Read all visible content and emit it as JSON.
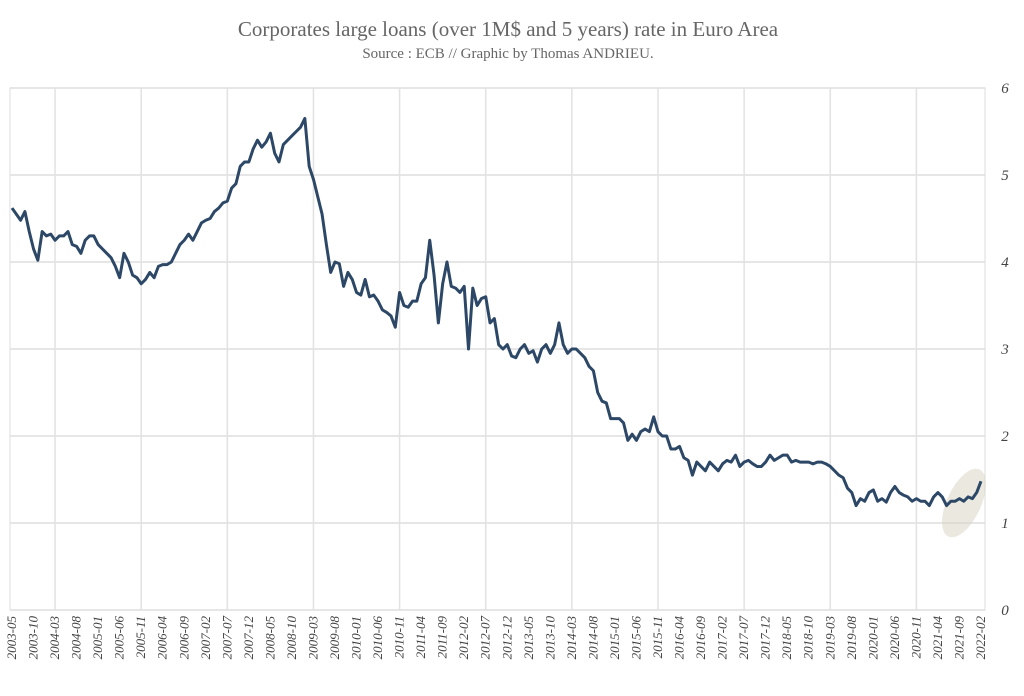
{
  "chart_data": {
    "type": "line",
    "title": "Corporates large loans (over 1M$ and 5 years) rate in Euro Area",
    "subtitle": "Source : ECB // Graphic by Thomas ANDRIEU.",
    "categories": [
      "2003-05",
      null,
      null,
      null,
      null,
      "2003-10",
      null,
      null,
      null,
      null,
      "2004-03",
      null,
      null,
      null,
      null,
      "2004-08",
      null,
      null,
      null,
      null,
      "2005-01",
      null,
      null,
      null,
      null,
      "2005-06",
      null,
      null,
      null,
      null,
      "2005-11",
      null,
      null,
      null,
      null,
      "2006-04",
      null,
      null,
      null,
      null,
      "2006-09",
      null,
      null,
      null,
      null,
      "2007-02",
      null,
      null,
      null,
      null,
      "2007-07",
      null,
      null,
      null,
      null,
      "2007-12",
      null,
      null,
      null,
      null,
      "2008-05",
      null,
      null,
      null,
      null,
      "2008-10",
      null,
      null,
      null,
      null,
      "2009-03",
      null,
      null,
      null,
      null,
      "2009-08",
      null,
      null,
      null,
      null,
      "2010-01",
      null,
      null,
      null,
      null,
      "2010-06",
      null,
      null,
      null,
      null,
      "2010-11",
      null,
      null,
      null,
      null,
      "2011-04",
      null,
      null,
      null,
      null,
      "2011-09",
      null,
      null,
      null,
      null,
      "2012-02",
      null,
      null,
      null,
      null,
      "2012-07",
      null,
      null,
      null,
      null,
      "2012-12",
      null,
      null,
      null,
      null,
      "2013-05",
      null,
      null,
      null,
      null,
      "2013-10",
      null,
      null,
      null,
      null,
      "2014-03",
      null,
      null,
      null,
      null,
      "2014-08",
      null,
      null,
      null,
      null,
      "2015-01",
      null,
      null,
      null,
      null,
      "2015-06",
      null,
      null,
      null,
      null,
      "2015-11",
      null,
      null,
      null,
      null,
      "2016-04",
      null,
      null,
      null,
      null,
      "2016-09",
      null,
      null,
      null,
      null,
      "2017-02",
      null,
      null,
      null,
      null,
      "2017-07",
      null,
      null,
      null,
      null,
      "2017-12",
      null,
      null,
      null,
      null,
      "2018-05",
      null,
      null,
      null,
      null,
      "2018-10",
      null,
      null,
      null,
      null,
      "2019-03",
      null,
      null,
      null,
      null,
      "2019-08",
      null,
      null,
      null,
      null,
      "2020-01",
      null,
      null,
      null,
      null,
      "2020-06",
      null,
      null,
      null,
      null,
      "2020-11",
      null,
      null,
      null,
      null,
      "2021-04",
      null,
      null,
      null,
      null,
      "2021-09",
      null,
      null,
      null,
      null,
      "2022-02"
    ],
    "values": [
      4.62,
      4.55,
      4.48,
      4.58,
      4.35,
      4.15,
      4.02,
      4.35,
      4.3,
      4.32,
      4.25,
      4.3,
      4.3,
      4.35,
      4.2,
      4.18,
      4.1,
      4.25,
      4.3,
      4.3,
      4.2,
      4.15,
      4.1,
      4.05,
      3.95,
      3.82,
      4.1,
      4.0,
      3.85,
      3.82,
      3.75,
      3.8,
      3.88,
      3.82,
      3.95,
      3.97,
      3.97,
      4.0,
      4.1,
      4.2,
      4.25,
      4.32,
      4.25,
      4.35,
      4.45,
      4.48,
      4.5,
      4.58,
      4.62,
      4.68,
      4.7,
      4.85,
      4.9,
      5.1,
      5.15,
      5.15,
      5.3,
      5.4,
      5.32,
      5.38,
      5.48,
      5.25,
      5.15,
      5.35,
      5.4,
      5.45,
      5.5,
      5.55,
      5.65,
      5.1,
      4.95,
      4.75,
      4.55,
      4.2,
      3.88,
      4.0,
      3.98,
      3.72,
      3.88,
      3.8,
      3.65,
      3.62,
      3.8,
      3.6,
      3.62,
      3.55,
      3.45,
      3.42,
      3.38,
      3.25,
      3.65,
      3.5,
      3.48,
      3.55,
      3.55,
      3.75,
      3.82,
      4.25,
      3.85,
      3.3,
      3.75,
      4.0,
      3.72,
      3.7,
      3.65,
      3.72,
      3.0,
      3.7,
      3.5,
      3.58,
      3.6,
      3.3,
      3.35,
      3.05,
      3.0,
      3.05,
      2.92,
      2.9,
      3.0,
      3.05,
      2.95,
      2.98,
      2.85,
      3.0,
      3.05,
      2.95,
      3.05,
      3.3,
      3.05,
      2.95,
      3.0,
      3.0,
      2.95,
      2.9,
      2.8,
      2.75,
      2.5,
      2.4,
      2.38,
      2.2,
      2.2,
      2.2,
      2.15,
      1.95,
      2.02,
      1.95,
      2.05,
      2.08,
      2.05,
      2.22,
      2.05,
      2.0,
      2.0,
      1.85,
      1.85,
      1.88,
      1.75,
      1.72,
      1.55,
      1.7,
      1.65,
      1.6,
      1.7,
      1.65,
      1.6,
      1.68,
      1.72,
      1.7,
      1.78,
      1.65,
      1.7,
      1.72,
      1.68,
      1.65,
      1.65,
      1.7,
      1.78,
      1.72,
      1.75,
      1.78,
      1.78,
      1.7,
      1.72,
      1.7,
      1.7,
      1.7,
      1.68,
      1.7,
      1.7,
      1.68,
      1.65,
      1.6,
      1.55,
      1.52,
      1.4,
      1.35,
      1.2,
      1.28,
      1.25,
      1.35,
      1.38,
      1.25,
      1.28,
      1.24,
      1.35,
      1.42,
      1.35,
      1.32,
      1.3,
      1.25,
      1.28,
      1.25,
      1.25,
      1.2,
      1.3,
      1.35,
      1.3,
      1.2,
      1.25,
      1.25,
      1.28,
      1.25,
      1.3,
      1.28,
      1.35,
      1.48
    ],
    "color": "#2d4867",
    "ylim": [
      0,
      6
    ],
    "yticks": [
      0,
      1,
      2,
      3,
      4,
      5,
      6
    ],
    "grid": true
  }
}
